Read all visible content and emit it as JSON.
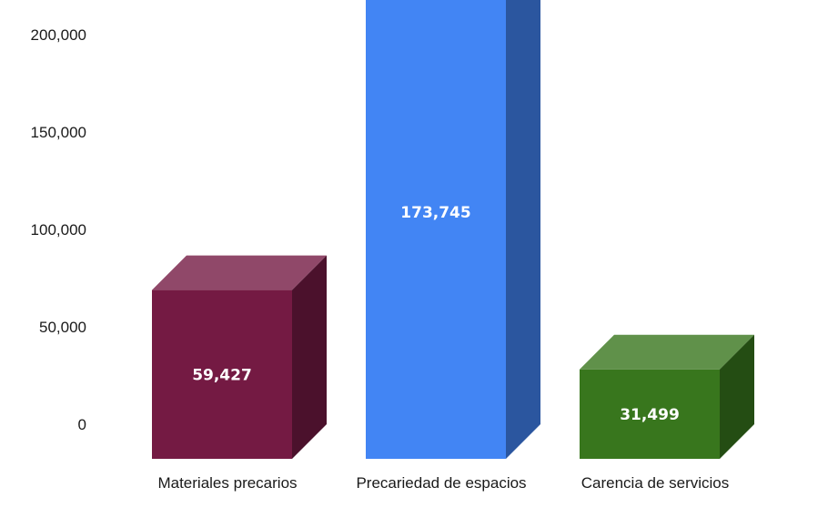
{
  "chart_data": {
    "type": "bar",
    "categories": [
      "Materiales precarios",
      "Precariedad de espacios",
      "Carencia de servicios"
    ],
    "values": [
      59427,
      173745,
      31499
    ],
    "value_labels": [
      "59,427",
      "173,745",
      "31,499"
    ],
    "colors": [
      "#741a43",
      "#4285f4",
      "#38761d"
    ],
    "y_ticks": [
      "0",
      "50,000",
      "100,000",
      "150,000",
      "200,000"
    ],
    "ylim": [
      0,
      200000
    ],
    "grid": false,
    "style": "3d-bars"
  }
}
